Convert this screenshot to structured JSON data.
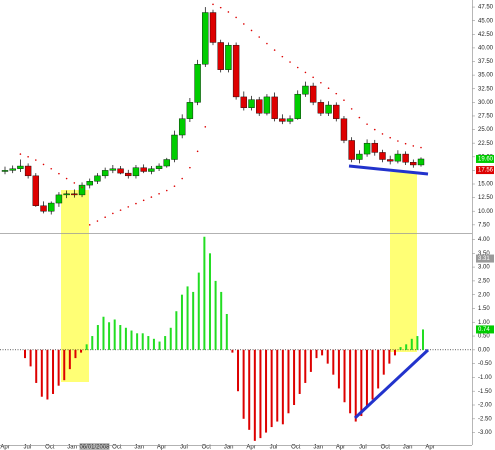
{
  "chart_data": [
    {
      "type": "candlestick",
      "open": [
        17.3,
        17.5,
        17.8,
        18.3,
        16.5,
        11,
        10,
        11.5,
        13,
        13.2,
        13,
        14.8,
        15.5,
        16.5,
        17.5,
        17.8,
        17,
        16.5,
        18,
        17.3,
        17.8,
        18.3,
        19.5,
        24,
        27,
        30,
        37,
        46.5,
        41,
        36,
        40.5,
        31,
        29,
        30.5,
        28,
        31,
        27,
        26.5,
        27,
        31.5,
        33,
        30,
        28,
        29.5,
        27,
        23,
        19.5,
        20.5,
        22.5,
        20.8,
        19.5,
        19.2,
        20.5,
        19,
        18.5
      ],
      "high": [
        18.2,
        18.4,
        19.5,
        18.8,
        17,
        11.8,
        11.8,
        13.5,
        13.8,
        14,
        15.3,
        16,
        17,
        18,
        18.5,
        18.3,
        17.6,
        18.5,
        18.6,
        18.3,
        18.8,
        19.8,
        24.8,
        27.8,
        30.8,
        37.8,
        47.5,
        47,
        41.5,
        41,
        41,
        32,
        31.2,
        31,
        31.5,
        31.8,
        27.8,
        27.6,
        32.2,
        33.8,
        33.6,
        30.5,
        30.2,
        30,
        27.5,
        23.6,
        21.2,
        23.2,
        23.1,
        21.3,
        20.2,
        21.2,
        21,
        19.5,
        19.9
      ],
      "low": [
        16.8,
        17,
        17.2,
        16,
        10.8,
        9.6,
        9.4,
        10.8,
        12.4,
        12.5,
        12.6,
        14.2,
        15,
        16,
        17,
        16.8,
        16,
        16,
        17,
        16.8,
        17.4,
        18,
        19,
        23.4,
        26.4,
        29.5,
        36.5,
        40.5,
        35.5,
        35.5,
        30.5,
        28.5,
        28.5,
        27.5,
        27.6,
        26.5,
        26,
        26,
        26.8,
        31,
        29.5,
        27.5,
        27.5,
        26.5,
        22.5,
        19,
        18.8,
        20,
        20.2,
        19,
        18.6,
        18.8,
        18.5,
        18,
        18.2
      ],
      "close": [
        17.5,
        17.8,
        18.3,
        16.5,
        11,
        10,
        11.5,
        13,
        13.2,
        13,
        14.8,
        15.5,
        16.5,
        17.5,
        17.8,
        17,
        16.5,
        18,
        17.3,
        17.8,
        18.3,
        19.5,
        24,
        27,
        30,
        37,
        46.5,
        41,
        36,
        40.5,
        31,
        29,
        30.5,
        28,
        31,
        27,
        26.5,
        27,
        31.5,
        33,
        30,
        28,
        29.5,
        27,
        23,
        19.5,
        20.5,
        22.5,
        20.8,
        19.5,
        19.2,
        20.5,
        19,
        18.5,
        19.6
      ],
      "sar": [
        null,
        null,
        20.5,
        20,
        19.4,
        18.6,
        17.8,
        16.9,
        16,
        15.2,
        14.4,
        7.5,
        8.2,
        8.9,
        9.6,
        10.2,
        10.8,
        11.4,
        12,
        12.6,
        13.2,
        13.8,
        14.6,
        16,
        18,
        21,
        25.5,
        48,
        47.4,
        46.6,
        45.6,
        44.4,
        43.2,
        42,
        40.8,
        39.6,
        38.4,
        37.4,
        36.4,
        35.5,
        34.6,
        33.6,
        32.6,
        31.6,
        30.4,
        28.8,
        27.2,
        26,
        25,
        24.2,
        23.5,
        22.9,
        22.4,
        22,
        21.7
      ],
      "up_color": "#00cc00",
      "down_color": "#dd0000",
      "sar_color": "#dd0000",
      "ylim": [
        6,
        48.8
      ],
      "yticks": [
        {
          "value": 7.5,
          "label": "7.50"
        },
        {
          "value": 10,
          "label": "10.00"
        },
        {
          "value": 12.5,
          "label": "12.50"
        },
        {
          "value": 15,
          "label": "15.00"
        },
        {
          "value": 17.5,
          "label": "17.50"
        },
        {
          "value": 20,
          "label": "20.00"
        },
        {
          "value": 22.5,
          "label": "22.50"
        },
        {
          "value": 25,
          "label": "25.00"
        },
        {
          "value": 27.5,
          "label": "27.50"
        },
        {
          "value": 30,
          "label": "30.00"
        },
        {
          "value": 32.5,
          "label": "32.50"
        },
        {
          "value": 35,
          "label": "35.00"
        },
        {
          "value": 37.5,
          "label": "37.50"
        },
        {
          "value": 40,
          "label": "40.00"
        },
        {
          "value": 42.5,
          "label": "42.50"
        },
        {
          "value": 45,
          "label": "45.00"
        },
        {
          "value": 47.5,
          "label": "47.50"
        }
      ],
      "markers": [
        {
          "value": 19.6,
          "label": "19.60",
          "color": "#00cc00"
        },
        {
          "value": 17.56,
          "label": "17.56",
          "color": "#dd0000"
        }
      ]
    },
    {
      "type": "histogram",
      "values": [
        -0.3,
        -0.6,
        -1.2,
        -1.7,
        -1.8,
        -1.6,
        -1.3,
        -1.1,
        -0.7,
        -0.3,
        -0.1,
        0.2,
        0.5,
        0.9,
        1.2,
        1.0,
        1.1,
        0.9,
        0.8,
        0.7,
        0.6,
        0.6,
        0.5,
        0.4,
        0.3,
        0.5,
        0.8,
        1.4,
        2.0,
        2.3,
        2.1,
        2.8,
        4.1,
        3.5,
        2.5,
        2.1,
        1.3,
        -0.1,
        -1.5,
        -2.5,
        -2.9,
        -3.3,
        -3.2,
        -3.0,
        -2.8,
        -2.6,
        -2.7,
        -2.3,
        -2.0,
        -1.6,
        -1.2,
        -0.8,
        -0.3,
        -0.2,
        -0.5,
        -0.9,
        -1.4,
        -1.9,
        -2.3,
        -2.6,
        -2.4,
        -2.1,
        -1.8,
        -1.4,
        -0.9,
        -0.5,
        -0.2,
        0.1,
        0.2,
        0.4,
        0.5,
        0.74
      ],
      "up_color": "#22dd22",
      "down_color": "#dd0000",
      "ylim": [
        -3.45,
        4.2
      ],
      "yticks": [
        {
          "value": -3,
          "label": "-3.00"
        },
        {
          "value": -2.5,
          "label": "-2.50"
        },
        {
          "value": -2,
          "label": "-2.00"
        },
        {
          "value": -1.5,
          "label": "-1.50"
        },
        {
          "value": -1,
          "label": "-1.00"
        },
        {
          "value": -0.5,
          "label": "-0.50"
        },
        {
          "value": 0,
          "label": "0.00"
        },
        {
          "value": 0.5,
          "label": "0.50"
        },
        {
          "value": 1,
          "label": "1.00"
        },
        {
          "value": 1.5,
          "label": "1.50"
        },
        {
          "value": 2,
          "label": "2.00"
        },
        {
          "value": 2.5,
          "label": "2.50"
        },
        {
          "value": 3,
          "label": "3.00"
        },
        {
          "value": 3.5,
          "label": "3.50"
        },
        {
          "value": 4,
          "label": "4.00"
        }
      ],
      "markers": [
        {
          "value": 3.31,
          "label": "3.31",
          "color": "#999999"
        },
        {
          "value": 0.74,
          "label": "0.74",
          "color": "#00cc00"
        }
      ],
      "categories": [
        "Apr",
        "Jul",
        "Oct",
        "Jan",
        "06/01/2008",
        "Oct",
        "Jan",
        "Apr",
        "Jul",
        "Oct",
        "Jan",
        "Apr",
        "Jul",
        "Oct",
        "Jan",
        "Apr",
        "Jul",
        "Oct",
        "Jan",
        "Apr"
      ]
    }
  ]
}
